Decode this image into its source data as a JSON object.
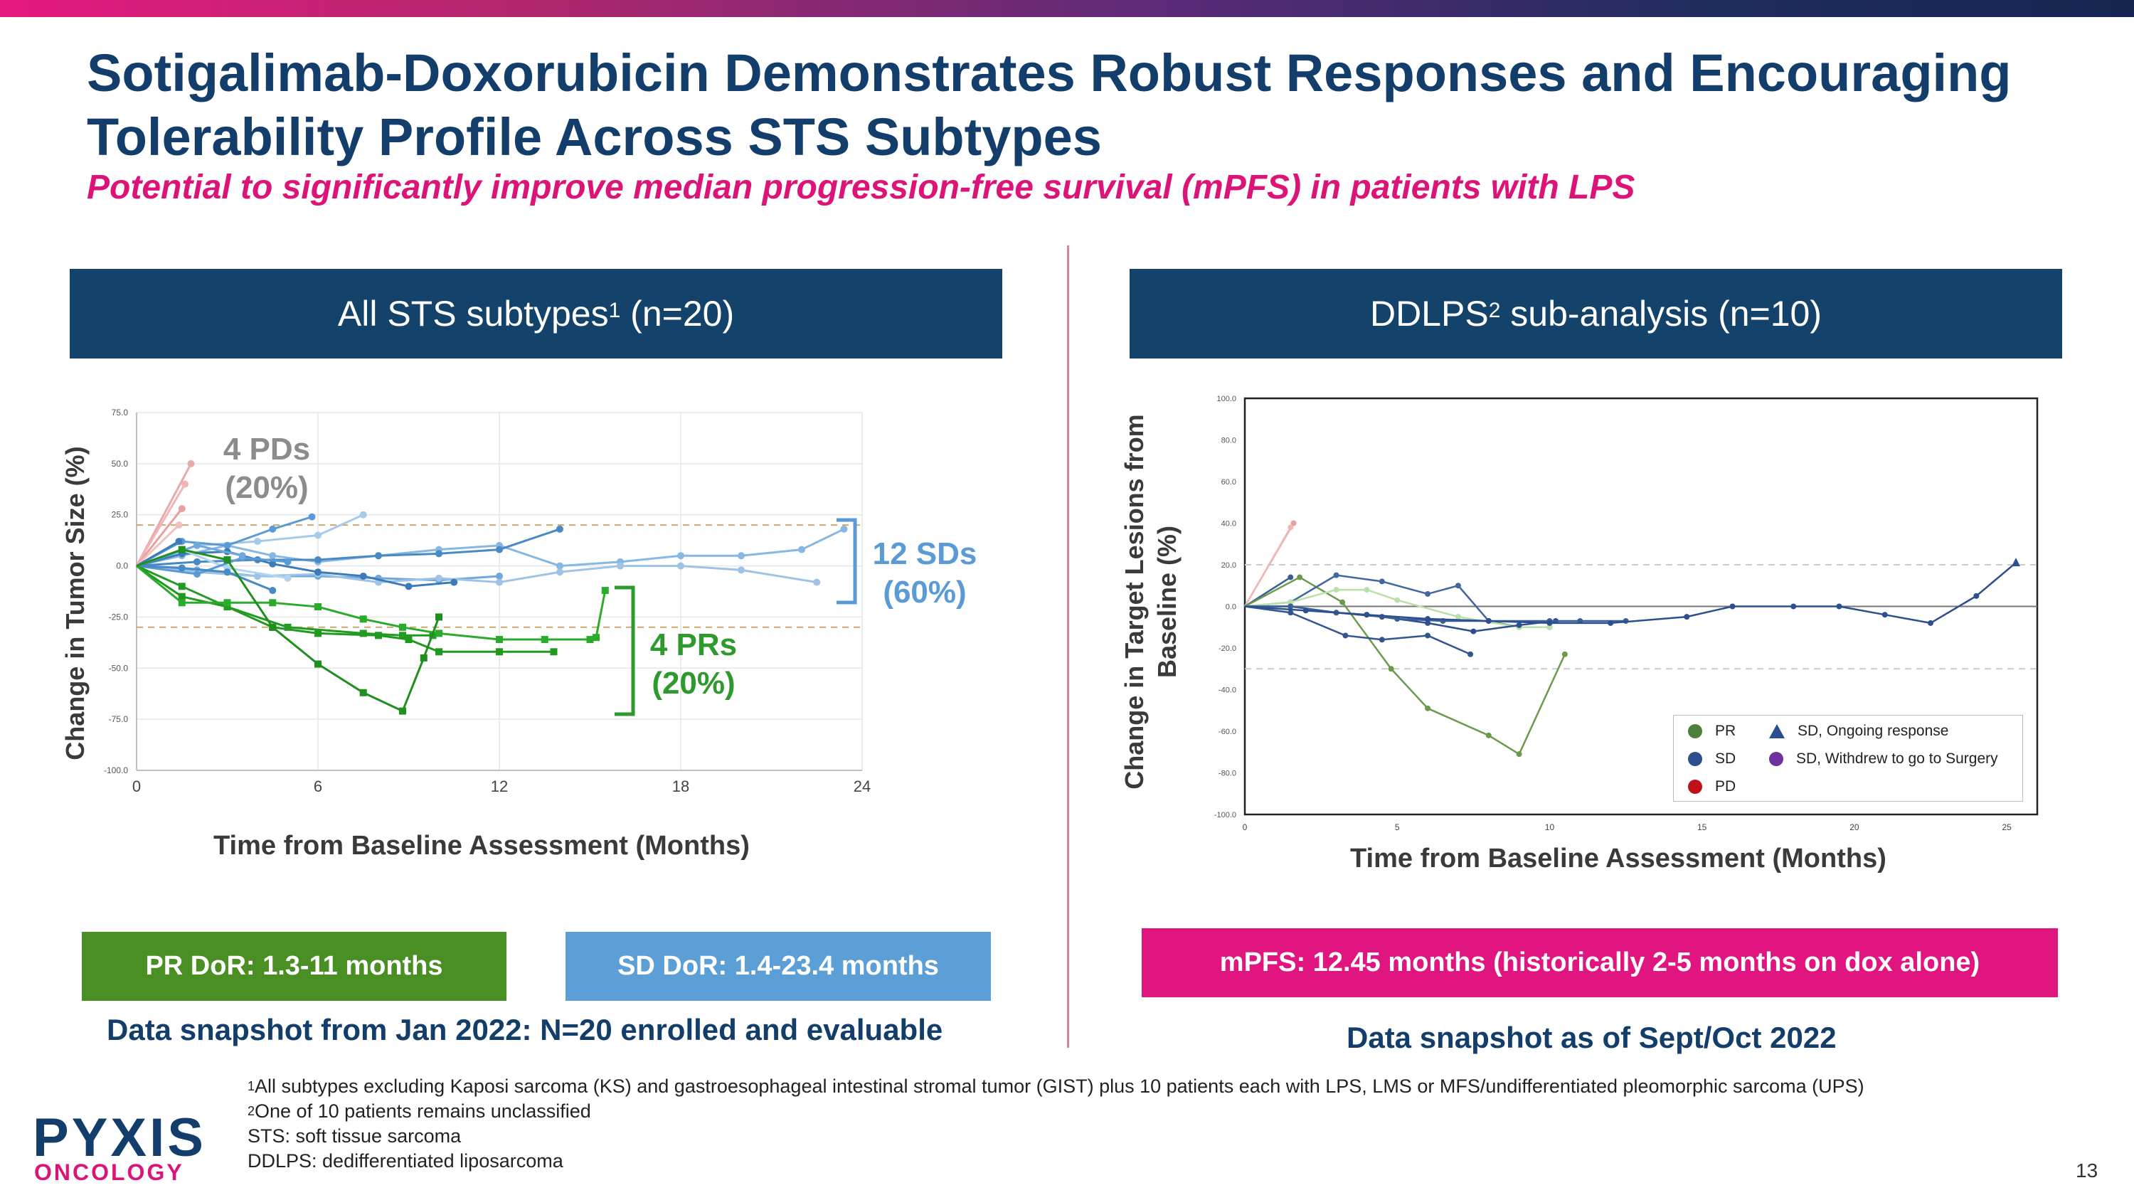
{
  "title": "Sotigalimab-Doxorubicin Demonstrates Robust Responses and Encouraging Tolerability Profile Across STS Subtypes",
  "subtitle": "Potential to significantly improve median progression-free survival (mPFS) in patients with LPS",
  "left_panel": {
    "header_main": "All STS subtypes",
    "header_sup": "1",
    "header_tail": " (n=20)",
    "annotations": {
      "pd": "4 PDs\n(20%)",
      "sd": "12 SDs\n(60%)",
      "pr": "4 PRs\n(20%)"
    },
    "pill_pr": "PR DoR: 1.3-11 months",
    "pill_sd": "SD DoR: 1.4-23.4 months",
    "snapshot": "Data snapshot from Jan 2022: N=20 enrolled and evaluable"
  },
  "right_panel": {
    "header_main": "DDLPS",
    "header_sup": "2",
    "header_tail": " sub-analysis (n=10)",
    "legend": {
      "pr": "PR",
      "sd": "SD",
      "pd": "PD",
      "sd_ongoing": "SD, Ongoing response",
      "sd_withdrew": "SD, Withdrew to go to Surgery"
    },
    "pill": "mPFS: 12.45 months (historically 2-5 months on dox alone)",
    "snapshot": "Data snapshot as of Sept/Oct 2022"
  },
  "footnotes": {
    "f1_sup": "1",
    "f1": "All subtypes excluding Kaposi sarcoma (KS) and gastroesophageal intestinal stromal tumor (GIST) plus 10 patients each with LPS, LMS or MFS/undifferentiated pleomorphic sarcoma (UPS)",
    "f2_sup": "2",
    "f2": "One of 10 patients remains unclassified",
    "f3": "STS: soft tissue sarcoma",
    "f4": "DDLPS: dedifferentiated liposarcoma"
  },
  "logo": {
    "line1": "PYXIS",
    "line2": "ONCOLOGY"
  },
  "page_number": "13",
  "colors": {
    "navy": "#133e6b",
    "magenta": "#dd1478",
    "pr_green": "#2e9a2e",
    "sd_blue": "#5b9bd5",
    "pd_pink": "#e8a0a0"
  },
  "chart_data": [
    {
      "type": "line",
      "title": "",
      "xlabel": "Time from Baseline Assessment (Months)",
      "ylabel": "Change in Tumor Size (%)",
      "xlim": [
        0,
        24
      ],
      "ylim": [
        -100,
        75
      ],
      "xticks": [
        0,
        6,
        12,
        18,
        24
      ],
      "yticks": [
        "75.0",
        "50.0",
        "25.0",
        "0.0",
        "-25.0",
        "-50.0",
        "-75.0",
        "-100.0"
      ],
      "reference_lines": [
        20,
        -30
      ],
      "grid": true,
      "series": [
        {
          "group": "PD",
          "x": [
            0,
            1.8
          ],
          "y": [
            0,
            50
          ]
        },
        {
          "group": "PD",
          "x": [
            0,
            1.6
          ],
          "y": [
            0,
            40
          ]
        },
        {
          "group": "PD",
          "x": [
            0,
            1.5
          ],
          "y": [
            0,
            28
          ]
        },
        {
          "group": "PD",
          "x": [
            0,
            1.4
          ],
          "y": [
            0,
            20
          ]
        },
        {
          "group": "SD",
          "x": [
            0,
            1.5,
            3,
            4.5,
            6,
            8,
            10,
            12,
            14,
            16,
            18,
            20,
            22,
            23.4
          ],
          "y": [
            0,
            5,
            10,
            5,
            2,
            5,
            8,
            10,
            0,
            2,
            5,
            5,
            8,
            18
          ]
        },
        {
          "group": "SD",
          "x": [
            0,
            2,
            4,
            6,
            7.5
          ],
          "y": [
            0,
            10,
            12,
            15,
            25
          ]
        },
        {
          "group": "SD",
          "x": [
            0,
            1.5,
            3,
            4.5,
            5.8
          ],
          "y": [
            0,
            12,
            10,
            18,
            24
          ]
        },
        {
          "group": "SD",
          "x": [
            0,
            2,
            4,
            6,
            8,
            10,
            12,
            14
          ],
          "y": [
            0,
            2,
            3,
            3,
            5,
            6,
            8,
            18
          ]
        },
        {
          "group": "SD",
          "x": [
            0,
            2,
            4,
            6,
            8,
            10,
            12
          ],
          "y": [
            0,
            -2,
            -5,
            -5,
            -6,
            -7,
            -5
          ]
        },
        {
          "group": "SD",
          "x": [
            0,
            2,
            4,
            6,
            8,
            10,
            12,
            14,
            16,
            18,
            20,
            22.5
          ],
          "y": [
            0,
            -3,
            -5,
            -4,
            -8,
            -6,
            -8,
            -3,
            0,
            0,
            -2,
            -8
          ]
        },
        {
          "group": "SD",
          "x": [
            0,
            1.5,
            3,
            4.5,
            6,
            7.5,
            9,
            10.5
          ],
          "y": [
            0,
            6,
            7,
            1,
            -3,
            -5,
            -10,
            -8
          ]
        },
        {
          "group": "SD",
          "x": [
            0,
            1.5,
            3,
            5
          ],
          "y": [
            0,
            8,
            -1,
            -6
          ]
        },
        {
          "group": "SD",
          "x": [
            0,
            2,
            3.5,
            5
          ],
          "y": [
            0,
            -4,
            4,
            2
          ]
        },
        {
          "group": "SD",
          "x": [
            0,
            1.5,
            3,
            4.5
          ],
          "y": [
            0,
            -1,
            -3,
            -12
          ]
        },
        {
          "group": "SD",
          "x": [
            0,
            2,
            3.5
          ],
          "y": [
            0,
            10,
            5
          ]
        },
        {
          "group": "SD",
          "x": [
            0,
            1.4
          ],
          "y": [
            0,
            12
          ]
        },
        {
          "group": "PR",
          "x": [
            0,
            1.5,
            3,
            4.5,
            6,
            8,
            9,
            10,
            12,
            13.8
          ],
          "y": [
            0,
            -15,
            -20,
            -30,
            -33,
            -34,
            -36,
            -42,
            -42,
            -42
          ]
        },
        {
          "group": "PR",
          "x": [
            0,
            1.5,
            3,
            5,
            7.5,
            8.8,
            9.8
          ],
          "y": [
            0,
            -10,
            -20,
            -30,
            -33,
            -34,
            -34
          ]
        },
        {
          "group": "PR",
          "x": [
            0,
            1.5,
            3,
            4.5,
            6,
            7.5,
            8.8,
            10,
            12,
            13.5,
            15,
            15.2,
            15.5
          ],
          "y": [
            0,
            -18,
            -18,
            -18,
            -20,
            -26,
            -30,
            -33,
            -36,
            -36,
            -36,
            -35,
            -12
          ]
        },
        {
          "group": "PR",
          "x": [
            0,
            1.5,
            3,
            4.5,
            6,
            7.5,
            8.8,
            9.5,
            10
          ],
          "y": [
            0,
            8,
            3,
            -30,
            -48,
            -62,
            -71,
            -45,
            -25
          ]
        }
      ]
    },
    {
      "type": "line",
      "title": "",
      "xlabel": "Time from Baseline Assessment (Months)",
      "ylabel": "Change in Target Lesions from Baseline (%)",
      "xlim": [
        0,
        26
      ],
      "ylim": [
        -100,
        100
      ],
      "xticks": [
        0,
        5,
        10,
        15,
        20,
        25
      ],
      "yticks": [
        "100.0",
        "80.0",
        "60.0",
        "40.0",
        "20.0",
        "0.0",
        "-20.0",
        "-40.0",
        "-60.0",
        "-80.0",
        "-100.0"
      ],
      "reference_lines": [
        20,
        0,
        -30
      ],
      "grid": false,
      "series": [
        {
          "group": "PD",
          "x": [
            0,
            1.6
          ],
          "y": [
            0,
            40
          ]
        },
        {
          "group": "PD",
          "x": [
            0,
            1.5
          ],
          "y": [
            0,
            38
          ]
        },
        {
          "group": "SD",
          "x": [
            0,
            1.5
          ],
          "y": [
            0,
            14
          ]
        },
        {
          "group": "PR",
          "x": [
            0,
            1.8,
            3.2,
            4.8,
            6,
            8,
            9,
            10.5
          ],
          "y": [
            0,
            14,
            2,
            -30,
            -49,
            -62,
            -71,
            -23
          ]
        },
        {
          "group": "SD",
          "x": [
            0,
            1.5,
            3,
            4.5,
            6,
            7,
            8,
            9,
            10
          ],
          "y": [
            0,
            2,
            15,
            12,
            6,
            10,
            -7,
            -10,
            -10
          ]
        },
        {
          "group": "SD",
          "x": [
            0,
            1.5,
            3,
            4,
            5,
            7,
            9,
            10
          ],
          "y": [
            0,
            2,
            8,
            8,
            3,
            -5,
            -10,
            -10
          ]
        },
        {
          "group": "SD",
          "x": [
            0,
            1.5,
            3,
            4.5,
            6,
            7.5,
            9,
            10.2
          ],
          "y": [
            0,
            0,
            -3,
            -5,
            -8,
            -12,
            -9,
            -7
          ]
        },
        {
          "group": "SD",
          "x": [
            0,
            1.5,
            3.3,
            4.5,
            6,
            7.4
          ],
          "y": [
            0,
            -3,
            -14,
            -16,
            -14,
            -23
          ]
        },
        {
          "group": "SD",
          "x": [
            0,
            1.5,
            3,
            4,
            5,
            6.5,
            8,
            10,
            11,
            12.5
          ],
          "y": [
            0,
            0,
            -3,
            -4,
            -6,
            -7,
            -7,
            -7,
            -7,
            -7
          ]
        },
        {
          "group": "SD_ongoing",
          "x": [
            0,
            2,
            4,
            6,
            8,
            10,
            12,
            14.5,
            16,
            18,
            19.5,
            21,
            22.5,
            24,
            25.3
          ],
          "y": [
            0,
            -2,
            -4,
            -6,
            -7,
            -8,
            -8,
            -5,
            0,
            0,
            0,
            -4,
            -8,
            5,
            21
          ]
        }
      ]
    }
  ]
}
